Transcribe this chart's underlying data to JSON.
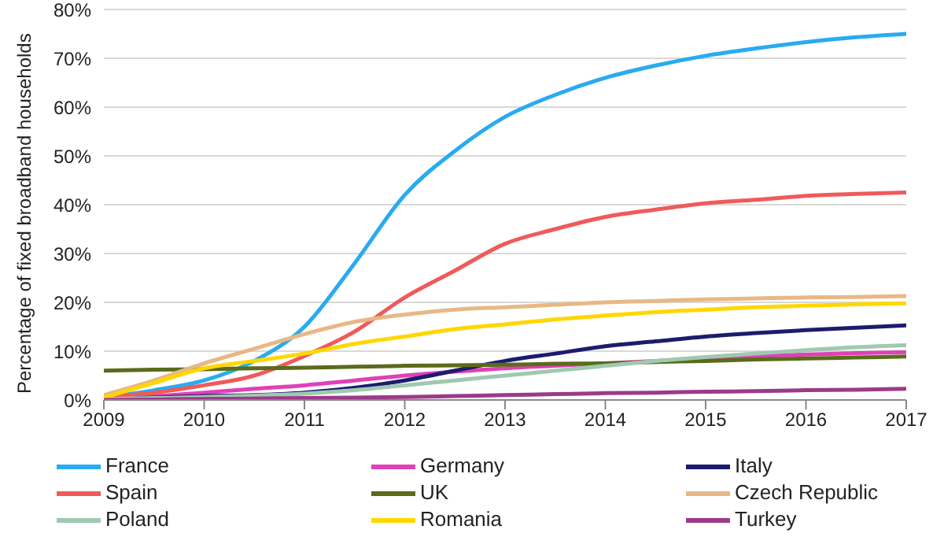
{
  "chart_data": {
    "type": "line",
    "ylabel": "Percentage of fixed broadband households",
    "x": [
      2009,
      2009.5,
      2010,
      2010.5,
      2011,
      2011.5,
      2012,
      2012.5,
      2013,
      2013.5,
      2014,
      2014.5,
      2015,
      2015.5,
      2016,
      2016.5,
      2017
    ],
    "xlim": [
      2009,
      2017
    ],
    "xticks": [
      2009,
      2010,
      2011,
      2012,
      2013,
      2014,
      2015,
      2016,
      2017
    ],
    "ylim": [
      0,
      80
    ],
    "yticks": [
      {
        "value": 0,
        "label": "0%"
      },
      {
        "value": 10,
        "label": "10%"
      },
      {
        "value": 20,
        "label": "20%"
      },
      {
        "value": 30,
        "label": "30%"
      },
      {
        "value": 40,
        "label": "40%"
      },
      {
        "value": 50,
        "label": "50%"
      },
      {
        "value": 60,
        "label": "60%"
      },
      {
        "value": 70,
        "label": "70%"
      },
      {
        "value": 80,
        "label": "80%"
      }
    ],
    "grid": "y",
    "legend": "bottom",
    "marker": "none",
    "series": [
      {
        "name": "France",
        "color": "#29abf0",
        "values": [
          0.5,
          2,
          4,
          8,
          15,
          28,
          42,
          51,
          58,
          62.5,
          66,
          68.5,
          70.5,
          72,
          73.3,
          74.3,
          75
        ]
      },
      {
        "name": "Germany",
        "color": "#e040b8",
        "values": [
          0.3,
          0.8,
          1.5,
          2.3,
          3,
          4,
          5,
          5.8,
          6.5,
          7,
          7.5,
          8,
          8.5,
          9,
          9.3,
          9.6,
          9.8
        ]
      },
      {
        "name": "Italy",
        "color": "#1c1c6e",
        "values": [
          0.3,
          0.5,
          0.8,
          1,
          1.5,
          2.5,
          4,
          6,
          8,
          9.5,
          11,
          12,
          13,
          13.7,
          14.3,
          14.8,
          15.3
        ]
      },
      {
        "name": "Spain",
        "color": "#f05a5a",
        "values": [
          0.5,
          1.5,
          3,
          5,
          9,
          14,
          21,
          26.5,
          32,
          35,
          37.5,
          39,
          40.3,
          41,
          41.8,
          42.2,
          42.5
        ]
      },
      {
        "name": "UK",
        "color": "#5a6b1a",
        "values": [
          6,
          6.2,
          6.3,
          6.5,
          6.6,
          6.8,
          7,
          7.1,
          7.2,
          7.4,
          7.5,
          7.8,
          8,
          8.3,
          8.5,
          8.7,
          8.9
        ]
      },
      {
        "name": "Czech Republic",
        "color": "#e8b884",
        "values": [
          1,
          4,
          7.5,
          10.5,
          13.5,
          16,
          17.5,
          18.5,
          19,
          19.5,
          20,
          20.3,
          20.6,
          20.8,
          21,
          21.1,
          21.3
        ]
      },
      {
        "name": "Poland",
        "color": "#9fc9b0",
        "values": [
          0.2,
          0.4,
          0.6,
          0.9,
          1.3,
          2,
          3,
          4,
          5,
          6,
          7,
          8,
          8.8,
          9.5,
          10.2,
          10.8,
          11.2
        ]
      },
      {
        "name": "Romania",
        "color": "#ffd700",
        "values": [
          0.5,
          3.5,
          6.5,
          8,
          9.5,
          11.5,
          13,
          14.5,
          15.5,
          16.5,
          17.3,
          18,
          18.5,
          19,
          19.3,
          19.6,
          19.8
        ]
      },
      {
        "name": "Turkey",
        "color": "#9c3a8a",
        "values": [
          0,
          0.1,
          0.2,
          0.3,
          0.4,
          0.5,
          0.6,
          0.8,
          1,
          1.2,
          1.4,
          1.5,
          1.7,
          1.8,
          2,
          2.1,
          2.3
        ]
      }
    ]
  }
}
